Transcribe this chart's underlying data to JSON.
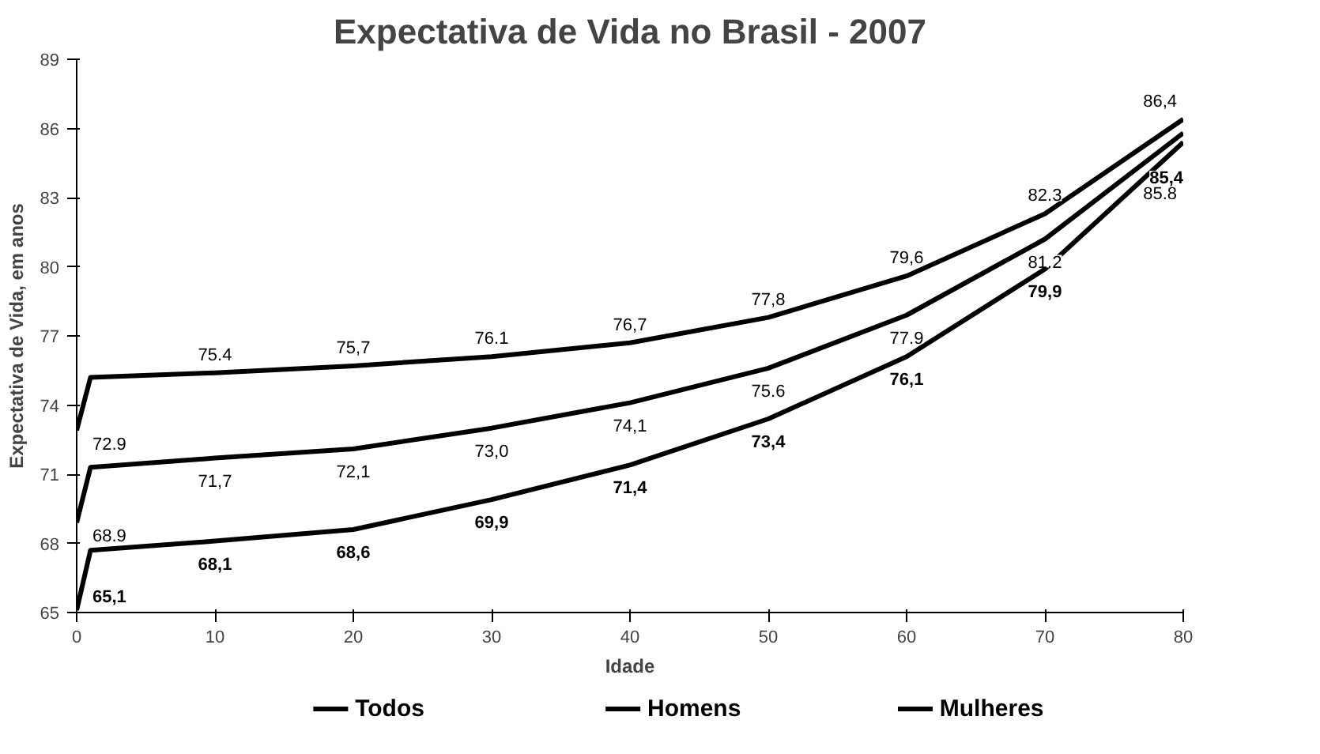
{
  "chart_data": {
    "type": "line",
    "title": "Expectativa de Vida no Brasil - 2007",
    "xlabel": "Idade",
    "ylabel": "Expectativa de Vida, em anos",
    "x": [
      0,
      1,
      10,
      20,
      30,
      40,
      50,
      60,
      70,
      80
    ],
    "xlim": [
      0,
      80
    ],
    "xticks": [
      0,
      10,
      20,
      30,
      40,
      50,
      60,
      70,
      80
    ],
    "ylim": [
      65,
      89
    ],
    "yticks": [
      65,
      68,
      71,
      74,
      77,
      80,
      83,
      86,
      89
    ],
    "grid": false,
    "legend": "bottom",
    "marker": "none",
    "line_style": "solid",
    "series": [
      {
        "name": "Todos",
        "color": "#000000",
        "values": [
          72.9,
          75.2,
          75.4,
          75.7,
          76.1,
          76.7,
          77.8,
          79.6,
          82.3,
          86.4
        ],
        "value_labels": [
          "72.9",
          null,
          "75.4",
          "75,7",
          "76.1",
          "76,7",
          "77,8",
          "79,6",
          "82.3",
          "86,4"
        ]
      },
      {
        "name": "Homens",
        "color": "#000000",
        "values": [
          68.9,
          71.3,
          71.7,
          72.1,
          73.0,
          74.1,
          75.6,
          77.9,
          81.2,
          85.8
        ],
        "value_labels": [
          "68.9",
          null,
          "71,7",
          "72,1",
          "73,0",
          "74,1",
          "75.6",
          "77.9",
          "81.2",
          "85.8"
        ]
      },
      {
        "name": "Mulheres",
        "color": "#000000",
        "values": [
          65.1,
          67.7,
          68.1,
          68.6,
          69.9,
          71.4,
          73.4,
          76.1,
          79.9,
          85.4
        ],
        "value_labels": [
          "65,1",
          null,
          "68,1",
          "68,6",
          "69,9",
          "71,4",
          "73,4",
          "76,1",
          "79,9",
          "85,4"
        ]
      }
    ]
  }
}
